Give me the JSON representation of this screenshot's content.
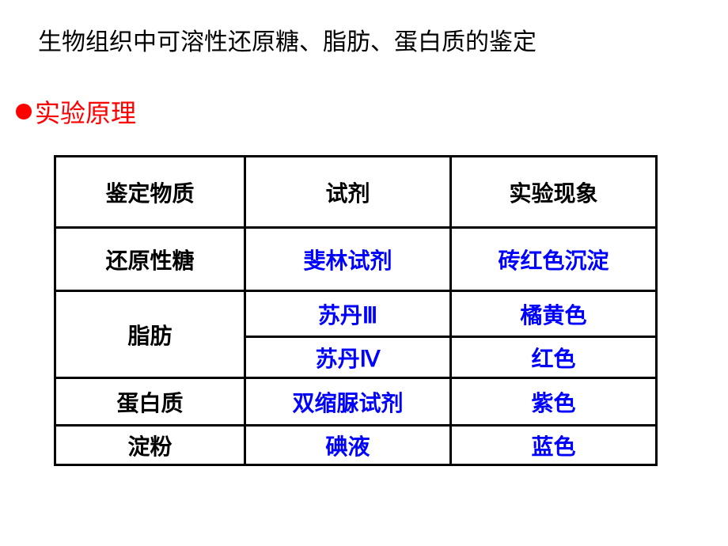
{
  "title": "生物组织中可溶性还原糖、脂肪、蛋白质的鉴定",
  "section": {
    "bullet_color": "#ff0000",
    "label": "实验原理",
    "label_color": "#ff0000"
  },
  "table": {
    "border_color": "#000000",
    "header_color": "#000000",
    "rowlabel_color": "#000000",
    "value_color": "#0000ff",
    "columns": [
      "鉴定物质",
      "试剂",
      "实验现象"
    ],
    "rows": [
      {
        "substance": "还原性糖",
        "reagents": [
          "斐林试剂"
        ],
        "results": [
          "砖红色沉淀"
        ]
      },
      {
        "substance": "脂肪",
        "reagents": [
          "苏丹Ⅲ",
          "苏丹Ⅳ"
        ],
        "results": [
          "橘黄色",
          "红色"
        ]
      },
      {
        "substance": "蛋白质",
        "reagents": [
          "双缩脲试剂"
        ],
        "results": [
          "紫色"
        ]
      },
      {
        "substance": "淀粉",
        "reagents": [
          "碘液"
        ],
        "results": [
          "蓝色"
        ]
      }
    ]
  }
}
